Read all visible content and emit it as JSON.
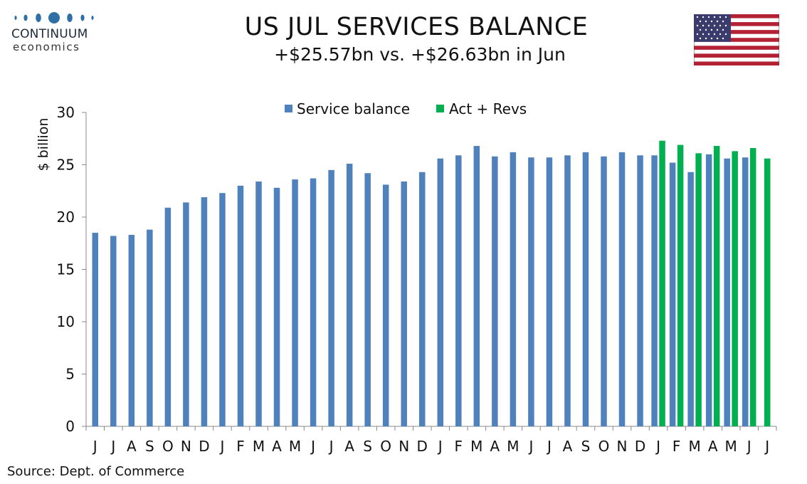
{
  "logo": {
    "word": "CONTINUUM",
    "sub": "economics"
  },
  "title": "US JUL SERVICES BALANCE",
  "subtitle": "+$25.57bn vs. +$26.63bn in Jun",
  "source": "Source: Dept. of Commerce",
  "flag_icon": "us-flag-icon",
  "colors": {
    "service": "#4f81bd",
    "revs": "#00b050"
  },
  "chart_data": {
    "type": "bar",
    "ylabel": "$ billion",
    "ylim": [
      0,
      30
    ],
    "yticks": [
      0,
      5,
      10,
      15,
      20,
      25,
      30
    ],
    "categories": [
      "J",
      "J",
      "A",
      "S",
      "O",
      "N",
      "D",
      "J",
      "F",
      "M",
      "A",
      "M",
      "J",
      "J",
      "A",
      "S",
      "O",
      "N",
      "D",
      "J",
      "F",
      "M",
      "A",
      "M",
      "J",
      "J",
      "A",
      "S",
      "O",
      "N",
      "D",
      "J",
      "F",
      "M",
      "A",
      "M",
      "J",
      "J"
    ],
    "legend": [
      "Service balance",
      "Act + Revs"
    ],
    "series": [
      {
        "name": "Service balance",
        "values": [
          18.5,
          18.2,
          18.3,
          18.8,
          20.9,
          21.4,
          21.9,
          22.3,
          23.0,
          23.4,
          22.8,
          23.6,
          23.7,
          24.5,
          25.1,
          24.2,
          23.1,
          23.4,
          24.3,
          25.6,
          25.9,
          26.8,
          25.8,
          26.2,
          25.7,
          25.7,
          25.9,
          26.2,
          25.8,
          26.2,
          25.9,
          25.9,
          25.2,
          24.3,
          26.0,
          25.6,
          25.7,
          null
        ]
      },
      {
        "name": "Act + Revs",
        "values": [
          null,
          null,
          null,
          null,
          null,
          null,
          null,
          null,
          null,
          null,
          null,
          null,
          null,
          null,
          null,
          null,
          null,
          null,
          null,
          null,
          null,
          null,
          null,
          null,
          null,
          null,
          null,
          null,
          null,
          null,
          null,
          27.3,
          26.9,
          26.1,
          26.8,
          26.3,
          26.6,
          25.6
        ]
      }
    ]
  }
}
